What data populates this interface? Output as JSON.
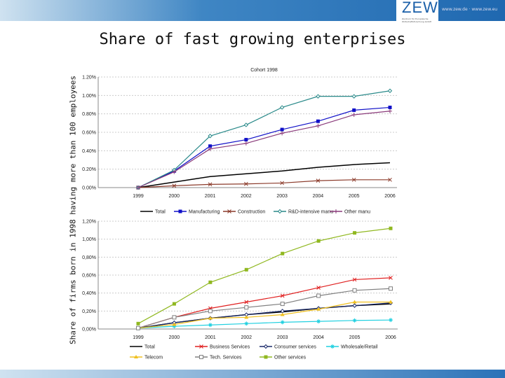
{
  "header": {
    "logo": "ZEW",
    "logo_sub": "Zentrum für Europäische Wirtschaftsforschung GmbH",
    "url": "www.zew.de · www.zew.eu"
  },
  "title": "Share of fast growing enterprises",
  "ylabel": "Share of firms born in 1998 having more than 100 employees",
  "chart_data": [
    {
      "type": "line",
      "title": "Cohort 1998",
      "categories": [
        "1999",
        "2000",
        "2001",
        "2002",
        "2003",
        "2004",
        "2005",
        "2006"
      ],
      "yticks": [
        "0.00%",
        "0.20%",
        "0.40%",
        "0.60%",
        "0.80%",
        "1.00%",
        "1.20%"
      ],
      "ylim": [
        0,
        1.2
      ],
      "legend": "bottom",
      "grid": true,
      "series": [
        {
          "name": "Total",
          "color": "#000000",
          "marker": "none",
          "values": [
            0,
            0.06,
            0.12,
            0.15,
            0.18,
            0.22,
            0.25,
            0.27
          ]
        },
        {
          "name": "Manufacturing",
          "color": "#1010c8",
          "marker": "square",
          "values": [
            0,
            0.18,
            0.45,
            0.52,
            0.63,
            0.72,
            0.84,
            0.87
          ]
        },
        {
          "name": "Construction",
          "color": "#8b3a2a",
          "marker": "x",
          "values": [
            0,
            0.02,
            0.035,
            0.04,
            0.05,
            0.075,
            0.085,
            0.085
          ]
        },
        {
          "name": "R&D-intensive manu",
          "color": "#2a8a8a",
          "marker": "diamond",
          "values": [
            0,
            0.19,
            0.56,
            0.68,
            0.87,
            0.99,
            0.99,
            1.05
          ]
        },
        {
          "name": "Other manu",
          "color": "#8a3a7a",
          "marker": "plus",
          "values": [
            0,
            0.17,
            0.42,
            0.48,
            0.59,
            0.67,
            0.79,
            0.83
          ]
        }
      ]
    },
    {
      "type": "line",
      "title": "",
      "categories": [
        "1999",
        "2000",
        "2001",
        "2002",
        "2003",
        "2004",
        "2005",
        "2006"
      ],
      "yticks": [
        "0,00%",
        "0,20%",
        "0,40%",
        "0,60%",
        "0,80%",
        "1,00%",
        "1,20%"
      ],
      "ylim": [
        0,
        1.2
      ],
      "legend": "bottom",
      "grid": true,
      "series": [
        {
          "name": "Total",
          "color": "#000000",
          "marker": "none",
          "values": [
            0.01,
            0.07,
            0.12,
            0.16,
            0.19,
            0.23,
            0.26,
            0.28
          ]
        },
        {
          "name": "Business Services",
          "color": "#e02020",
          "marker": "x",
          "values": [
            0.01,
            0.13,
            0.23,
            0.3,
            0.37,
            0.46,
            0.55,
            0.57
          ]
        },
        {
          "name": "Consumer services",
          "color": "#1a2a6a",
          "marker": "diamond",
          "values": [
            0.01,
            0.07,
            0.12,
            0.16,
            0.2,
            0.23,
            0.26,
            0.29
          ]
        },
        {
          "name": "Wholesale/Retail",
          "color": "#20d0e0",
          "marker": "star",
          "values": [
            0.01,
            0.03,
            0.045,
            0.06,
            0.075,
            0.085,
            0.095,
            0.1
          ]
        },
        {
          "name": "Telecom",
          "color": "#f0c020",
          "marker": "triangle",
          "values": [
            0.01,
            0.05,
            0.12,
            0.13,
            0.16,
            0.22,
            0.3,
            0.3
          ]
        },
        {
          "name": "Tech. Services",
          "color": "#808080",
          "marker": "square-open",
          "values": [
            0.01,
            0.13,
            0.2,
            0.24,
            0.28,
            0.37,
            0.43,
            0.45
          ]
        },
        {
          "name": "Other services",
          "color": "#90b820",
          "marker": "square",
          "values": [
            0.06,
            0.28,
            0.52,
            0.66,
            0.84,
            0.98,
            1.07,
            1.12
          ]
        }
      ]
    }
  ]
}
